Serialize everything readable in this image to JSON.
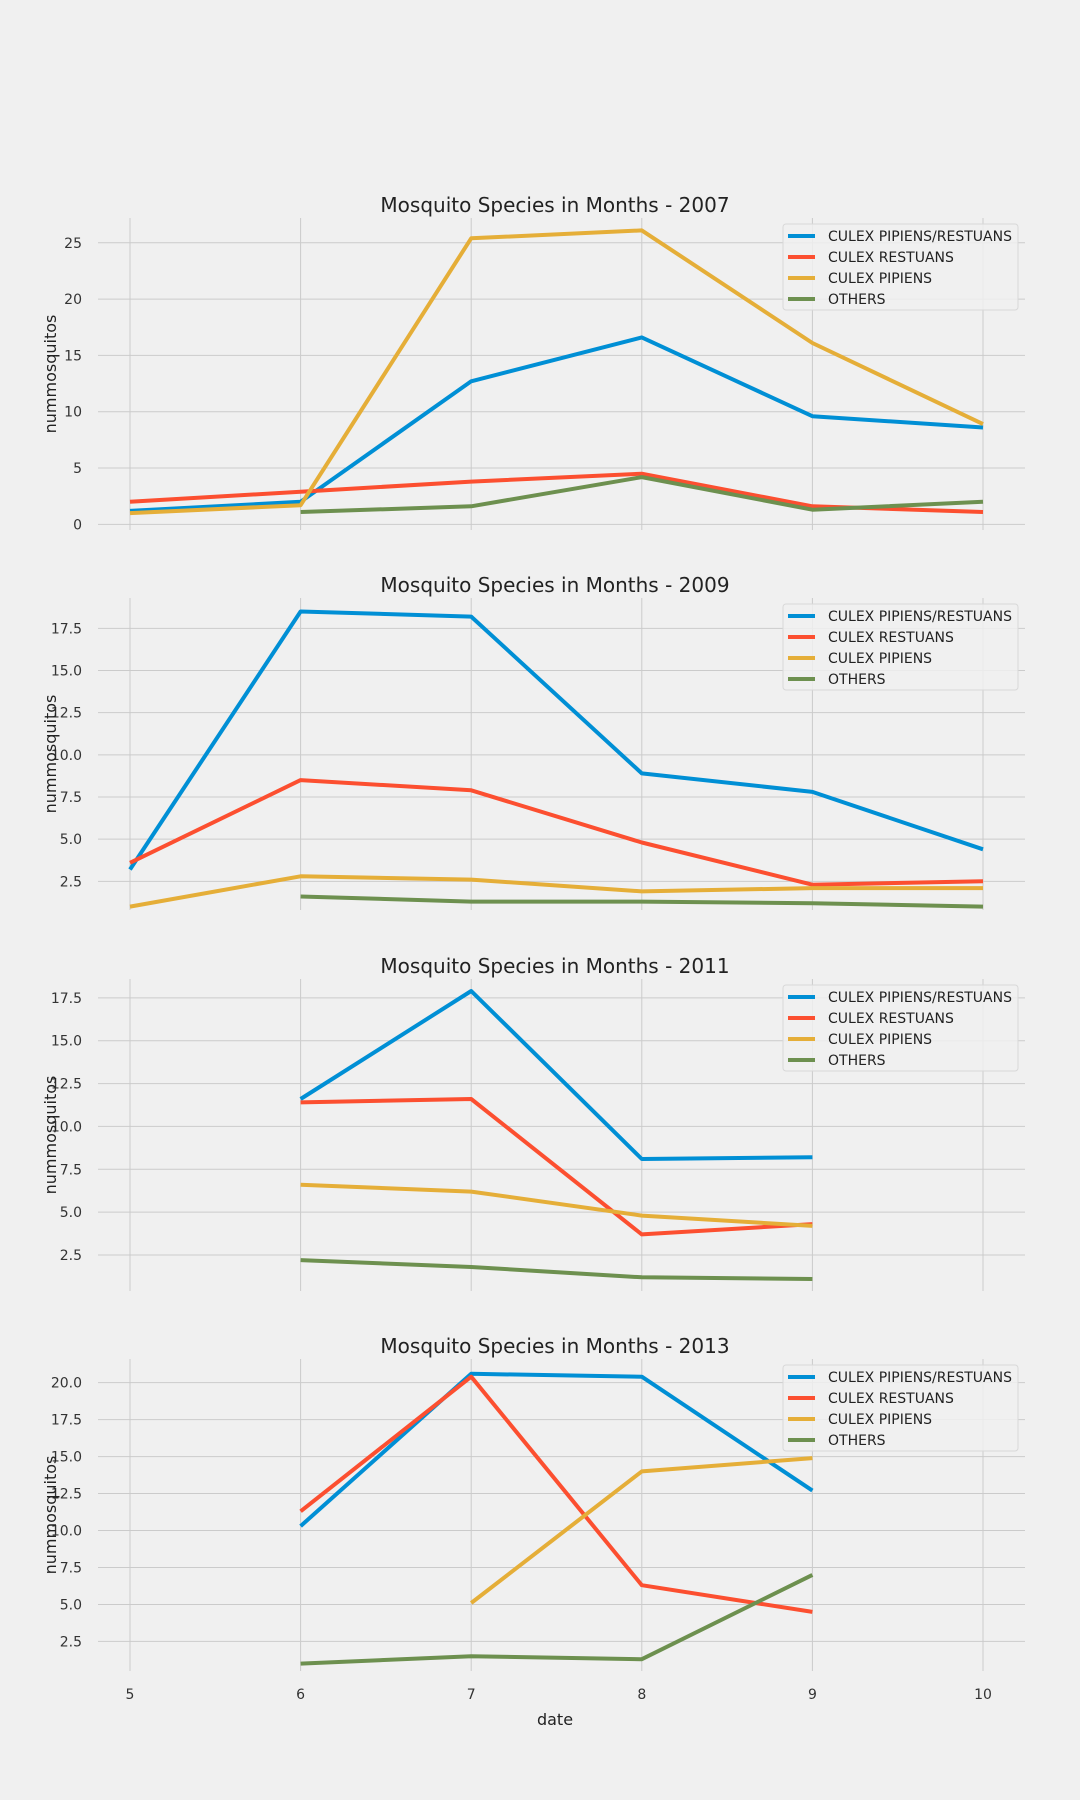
{
  "chart_data": [
    {
      "type": "line",
      "title": "Mosquito Species in Months - 2007",
      "xlabel": "",
      "ylabel": "nummosquitos",
      "ylim": [
        -0.5,
        27.2
      ],
      "yticks": [
        0,
        5,
        10,
        15,
        20,
        25
      ],
      "xlim": [
        4.8,
        10.25
      ],
      "legend": "top-right",
      "series": [
        {
          "name": "CULEX PIPIENS/RESTUANS",
          "color": "#008fd5",
          "x": [
            5,
            6,
            7,
            8,
            9,
            10
          ],
          "values": [
            1.2,
            2.0,
            12.7,
            16.6,
            9.6,
            8.6
          ]
        },
        {
          "name": "CULEX RESTUANS",
          "color": "#fc4f30",
          "x": [
            5,
            6,
            7,
            8,
            9,
            10
          ],
          "values": [
            2.0,
            2.9,
            3.8,
            4.5,
            1.6,
            1.1
          ]
        },
        {
          "name": "CULEX PIPIENS",
          "color": "#e5ae38",
          "x": [
            5,
            6,
            7,
            8,
            9,
            10
          ],
          "values": [
            1.0,
            1.7,
            25.4,
            26.1,
            16.1,
            8.9
          ]
        },
        {
          "name": "OTHERS",
          "color": "#6d904f",
          "x": [
            6,
            7,
            8,
            9,
            10
          ],
          "values": [
            1.1,
            1.6,
            4.2,
            1.3,
            2.0
          ]
        }
      ]
    },
    {
      "type": "line",
      "title": "Mosquito Species in Months - 2009",
      "xlabel": "",
      "ylabel": "nummosquitos",
      "ylim": [
        0.8,
        19.3
      ],
      "yticks": [
        2.5,
        5.0,
        7.5,
        10.0,
        12.5,
        15.0,
        17.5
      ],
      "yticklabels": [
        "2.5",
        "5.0",
        "7.5",
        "10.0",
        "12.5",
        "15.0",
        "17.5"
      ],
      "xlim": [
        4.8,
        10.25
      ],
      "legend": "top-right",
      "series": [
        {
          "name": "CULEX PIPIENS/RESTUANS",
          "color": "#008fd5",
          "x": [
            5,
            6,
            7,
            8,
            9,
            10
          ],
          "values": [
            3.2,
            18.5,
            18.2,
            8.9,
            7.8,
            4.4
          ]
        },
        {
          "name": "CULEX RESTUANS",
          "color": "#fc4f30",
          "x": [
            5,
            6,
            7,
            8,
            9,
            10
          ],
          "values": [
            3.6,
            8.5,
            7.9,
            4.8,
            2.3,
            2.5
          ]
        },
        {
          "name": "CULEX PIPIENS",
          "color": "#e5ae38",
          "x": [
            5,
            6,
            7,
            8,
            9,
            10
          ],
          "values": [
            1.0,
            2.8,
            2.6,
            1.9,
            2.1,
            2.1
          ]
        },
        {
          "name": "OTHERS",
          "color": "#6d904f",
          "x": [
            6,
            7,
            8,
            9,
            10
          ],
          "values": [
            1.6,
            1.3,
            1.3,
            1.2,
            1.0
          ]
        }
      ]
    },
    {
      "type": "line",
      "title": "Mosquito Species in Months - 2011",
      "xlabel": "",
      "ylabel": "nummosquitos",
      "ylim": [
        0.4,
        18.6
      ],
      "yticks": [
        2.5,
        5.0,
        7.5,
        10.0,
        12.5,
        15.0,
        17.5
      ],
      "yticklabels": [
        "2.5",
        "5.0",
        "7.5",
        "10.0",
        "12.5",
        "15.0",
        "17.5"
      ],
      "xlim": [
        4.8,
        10.25
      ],
      "legend": "top-right",
      "series": [
        {
          "name": "CULEX PIPIENS/RESTUANS",
          "color": "#008fd5",
          "x": [
            6,
            7,
            8,
            9
          ],
          "values": [
            11.6,
            17.9,
            8.1,
            8.2
          ]
        },
        {
          "name": "CULEX RESTUANS",
          "color": "#fc4f30",
          "x": [
            6,
            7,
            8,
            9
          ],
          "values": [
            11.4,
            11.6,
            3.7,
            4.3
          ]
        },
        {
          "name": "CULEX PIPIENS",
          "color": "#e5ae38",
          "x": [
            6,
            7,
            8,
            9
          ],
          "values": [
            6.6,
            6.2,
            4.8,
            4.2
          ]
        },
        {
          "name": "OTHERS",
          "color": "#6d904f",
          "x": [
            6,
            7,
            8,
            9
          ],
          "values": [
            2.2,
            1.8,
            1.2,
            1.1
          ]
        }
      ]
    },
    {
      "type": "line",
      "title": "Mosquito Species in Months - 2013",
      "xlabel": "date",
      "ylabel": "nummosquitos",
      "ylim": [
        0.5,
        21.6
      ],
      "yticks": [
        2.5,
        5.0,
        7.5,
        10.0,
        12.5,
        15.0,
        17.5,
        20.0
      ],
      "yticklabels": [
        "2.5",
        "5.0",
        "7.5",
        "10.0",
        "12.5",
        "15.0",
        "17.5",
        "20.0"
      ],
      "xlim": [
        4.8,
        10.25
      ],
      "xticks": [
        5,
        6,
        7,
        8,
        9,
        10
      ],
      "legend": "top-right",
      "series": [
        {
          "name": "CULEX PIPIENS/RESTUANS",
          "color": "#008fd5",
          "x": [
            6,
            7,
            8,
            9
          ],
          "values": [
            10.3,
            20.6,
            20.4,
            12.7
          ]
        },
        {
          "name": "CULEX RESTUANS",
          "color": "#fc4f30",
          "x": [
            6,
            7,
            8,
            9
          ],
          "values": [
            11.3,
            20.4,
            6.3,
            4.5
          ]
        },
        {
          "name": "CULEX PIPIENS",
          "color": "#e5ae38",
          "x": [
            7,
            8,
            9
          ],
          "values": [
            5.1,
            14.0,
            14.9
          ]
        },
        {
          "name": "OTHERS",
          "color": "#6d904f",
          "x": [
            6,
            7,
            8,
            9
          ],
          "values": [
            1.0,
            1.5,
            1.3,
            7.0
          ]
        }
      ]
    }
  ]
}
